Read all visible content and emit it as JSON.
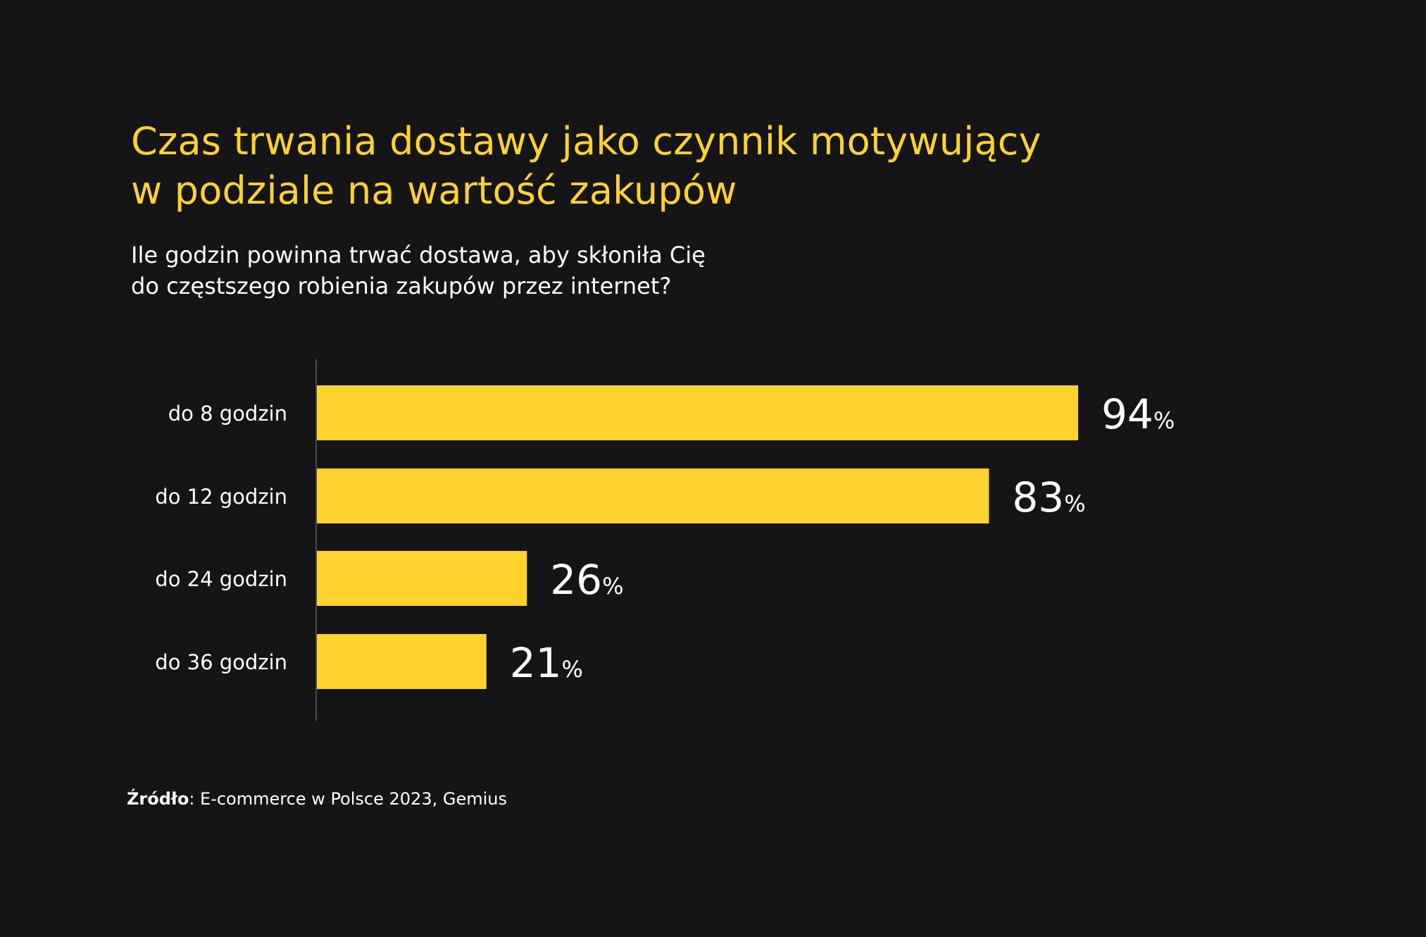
{
  "title_line1": "Czas trwania dostawy jako czynnik motywujący",
  "title_line2": "w podziale na wartość zakupów",
  "subtitle_line1": "Ile godzin powinna trwać dostawa, aby skłoniła Cię",
  "subtitle_line2": "do częstszego robienia zakupów przez internet?",
  "source_label": "Źródło",
  "source_text": ": E-commerce w Polsce 2023, Gemius",
  "colors": {
    "background": "#151416",
    "bar": "#FFD22E",
    "title": "#FFD22E",
    "text": "#FFFFFF",
    "axis": "#4A4A4C"
  },
  "chart_data": {
    "type": "bar",
    "orientation": "horizontal",
    "categories": [
      "do 8 godzin",
      "do 12 godzin",
      "do 24 godzin",
      "do 36 godzin"
    ],
    "values": [
      94,
      83,
      26,
      21
    ],
    "value_suffix": "%",
    "xlim": [
      0,
      100
    ]
  }
}
